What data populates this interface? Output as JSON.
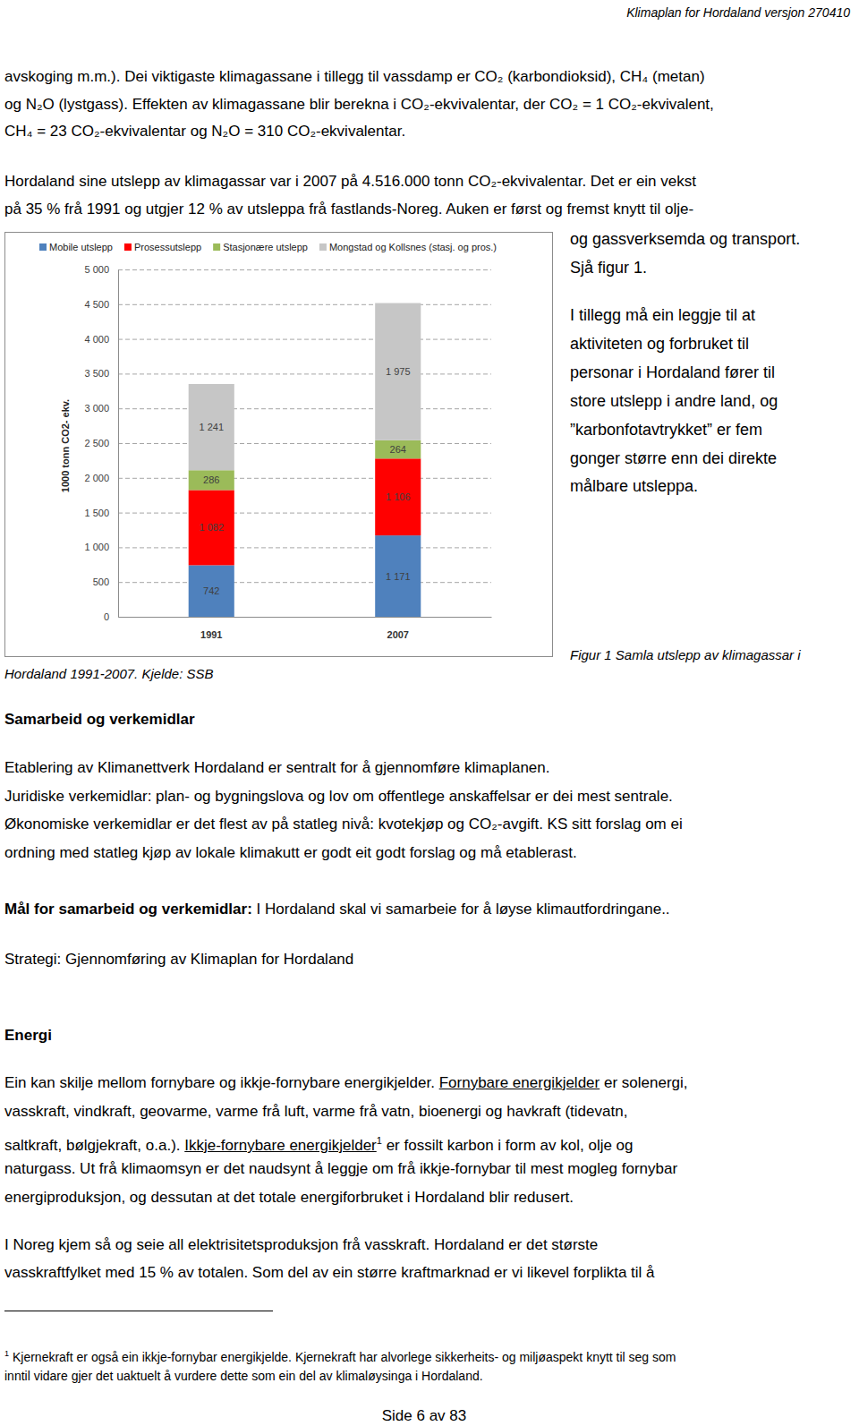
{
  "header": {
    "title": "Klimaplan for Hordaland versjon 270410"
  },
  "blocks": [
    {
      "kind": "paragraph",
      "lines": [
        "avskoging m.m.). Dei viktigaste klimagassane i tillegg til vassdamp er CO₂ (karbondioksid), CH₄ (metan)",
        "og N₂O (lystgass). Effekten av klimagassane blir berekna i CO₂-ekvivalentar, der CO₂ = 1 CO₂-ekvivalent,",
        "CH₄ = 23 CO₂-ekvivalentar og N₂O = 310 CO₂-ekvivalentar."
      ]
    },
    {
      "kind": "paragraph",
      "lines": [
        "Hordaland sine utslepp av klimagassar var i 2007 på 4.516.000 tonn CO₂-ekvivalentar. Det er ein vekst",
        "på 35 % frå 1991 og utgjer 12 % av utsleppa frå fastlands-Noreg. Auken er først og fremst knytt til olje-"
      ]
    },
    {
      "kind": "side",
      "lines": [
        "og gassverksemda og transport.",
        "Sjå figur 1."
      ]
    },
    {
      "kind": "side",
      "lines": [
        "I tillegg må ein leggje til at",
        "aktiviteten og forbruket til",
        "personar i Hordaland fører til",
        "store utslepp i andre land, og",
        "”karbonfotavtrykket” er fem",
        "gonger større enn dei direkte",
        "målbare utsleppa."
      ]
    },
    {
      "kind": "caption",
      "lines": [
        "Figur 1 Samla utslepp av klimagassar i"
      ]
    },
    {
      "kind": "caption",
      "lines": [
        "Hordaland 1991-2007. Kjelde: SSB"
      ]
    },
    {
      "kind": "heading",
      "lines": [
        "Samarbeid og verkemidlar"
      ]
    },
    {
      "kind": "paragraph",
      "lines": [
        "Etablering av Klimanettverk Hordaland er sentralt for å gjennomføre klimaplanen.",
        "Juridiske verkemidlar: plan- og bygningslova og lov om offentlege anskaffelsar er dei mest sentrale.",
        "Økonomiske verkemidlar er det flest av på statleg nivå: kvotekjøp og CO₂-avgift. KS sitt forslag om ei",
        "ordning med statleg kjøp av lokale klimakutt er godt eit godt forslag og må etablerast."
      ]
    },
    {
      "kind": "paragraph",
      "lines": [
        [
          {
            "text": "Mål for samarbeid og verkemidlar:",
            "bold": true
          },
          {
            "text": " I Hordaland skal vi samarbeie for å løyse klimautfordringane.."
          }
        ]
      ]
    },
    {
      "kind": "paragraph",
      "lines": [
        "Strategi: Gjennomføring av Klimaplan for Hordaland"
      ]
    },
    {
      "kind": "heading",
      "lines": [
        "Energi"
      ]
    },
    {
      "kind": "paragraph",
      "lines": [
        [
          {
            "text": "Ein kan skilje mellom fornybare og ikkje-fornybare energikjelder. "
          },
          {
            "text": "Fornybare energikjelder",
            "underline": true
          },
          {
            "text": " er solenergi,"
          }
        ],
        "vasskraft, vindkraft, geovarme, varme frå luft, varme frå vatn, bioenergi og havkraft (tidevatn,",
        [
          {
            "text": "saltkraft, bølgjekraft, o.a.). "
          },
          {
            "text": "Ikkje-fornybare energikjelder",
            "underline": true
          },
          {
            "text": "1",
            "sup": true
          },
          {
            "text": " er fossilt karbon i form av kol, olje og"
          }
        ],
        "naturgass. Ut frå klimaomsyn er det naudsynt å leggje om frå ikkje-fornybar til mest mogleg fornybar",
        "energiproduksjon, og dessutan at det totale energiforbruket i Hordaland blir redusert."
      ]
    },
    {
      "kind": "paragraph",
      "lines": [
        "I Noreg kjem så og seie all elektrisitetsproduksjon frå vasskraft. Hordaland er det største",
        "vasskraftfylket med 15 % av totalen. Som del av ein større kraftmarknad er vi likevel forplikta til å"
      ]
    },
    {
      "kind": "footnote",
      "lines": [
        [
          {
            "text": "1",
            "sup": true
          },
          {
            "text": " Kjernekraft er også ein ikkje-fornybar energikjelde. Kjernekraft har alvorlege sikkerheits- og miljøaspekt knytt til seg som"
          }
        ],
        "inntil vidare gjer det uaktuelt å vurdere dette som ein del av klimaløysinga i Hordaland."
      ]
    }
  ],
  "page_number": "Side 6 av 83",
  "chart_data": {
    "type": "bar",
    "stacked": true,
    "data_labels": true,
    "grid": true,
    "legend": "top",
    "y_label": "1000 tonn CO2- ekv.",
    "categories": [
      "1991",
      "2007"
    ],
    "series": [
      {
        "name": "Mobile utslepp",
        "color": "#4f81bd",
        "values": [
          742,
          1171
        ],
        "value_labels": [
          "742",
          "1 171"
        ]
      },
      {
        "name": "Prosessutslepp",
        "color": "#ff0000",
        "values": [
          1082,
          1106
        ],
        "value_labels": [
          "1 082",
          "1 106"
        ]
      },
      {
        "name": "Stasjonære utslepp",
        "color": "#9bbb59",
        "values": [
          286,
          264
        ],
        "value_labels": [
          "286",
          "264"
        ]
      },
      {
        "name": "Mongstad og Kollsnes (stasj. og pros.)",
        "color": "#c6c6c6",
        "values": [
          1241,
          1975
        ],
        "value_labels": [
          "1 241",
          "1 975"
        ]
      }
    ],
    "ylim": [
      0,
      5000
    ],
    "yticks": [
      0,
      500,
      {
        "value": 1000,
        "label": "1 000"
      },
      {
        "value": 1500,
        "label": "1 500"
      },
      {
        "value": 2000,
        "label": "2 000"
      },
      {
        "value": 2500,
        "label": "2 500"
      },
      {
        "value": 3000,
        "label": "3 000"
      },
      {
        "value": 3500,
        "label": "3 500"
      },
      {
        "value": 4000,
        "label": "4 000"
      },
      {
        "value": 4500,
        "label": "4 500"
      },
      {
        "value": 5000,
        "label": "5 000"
      }
    ]
  }
}
